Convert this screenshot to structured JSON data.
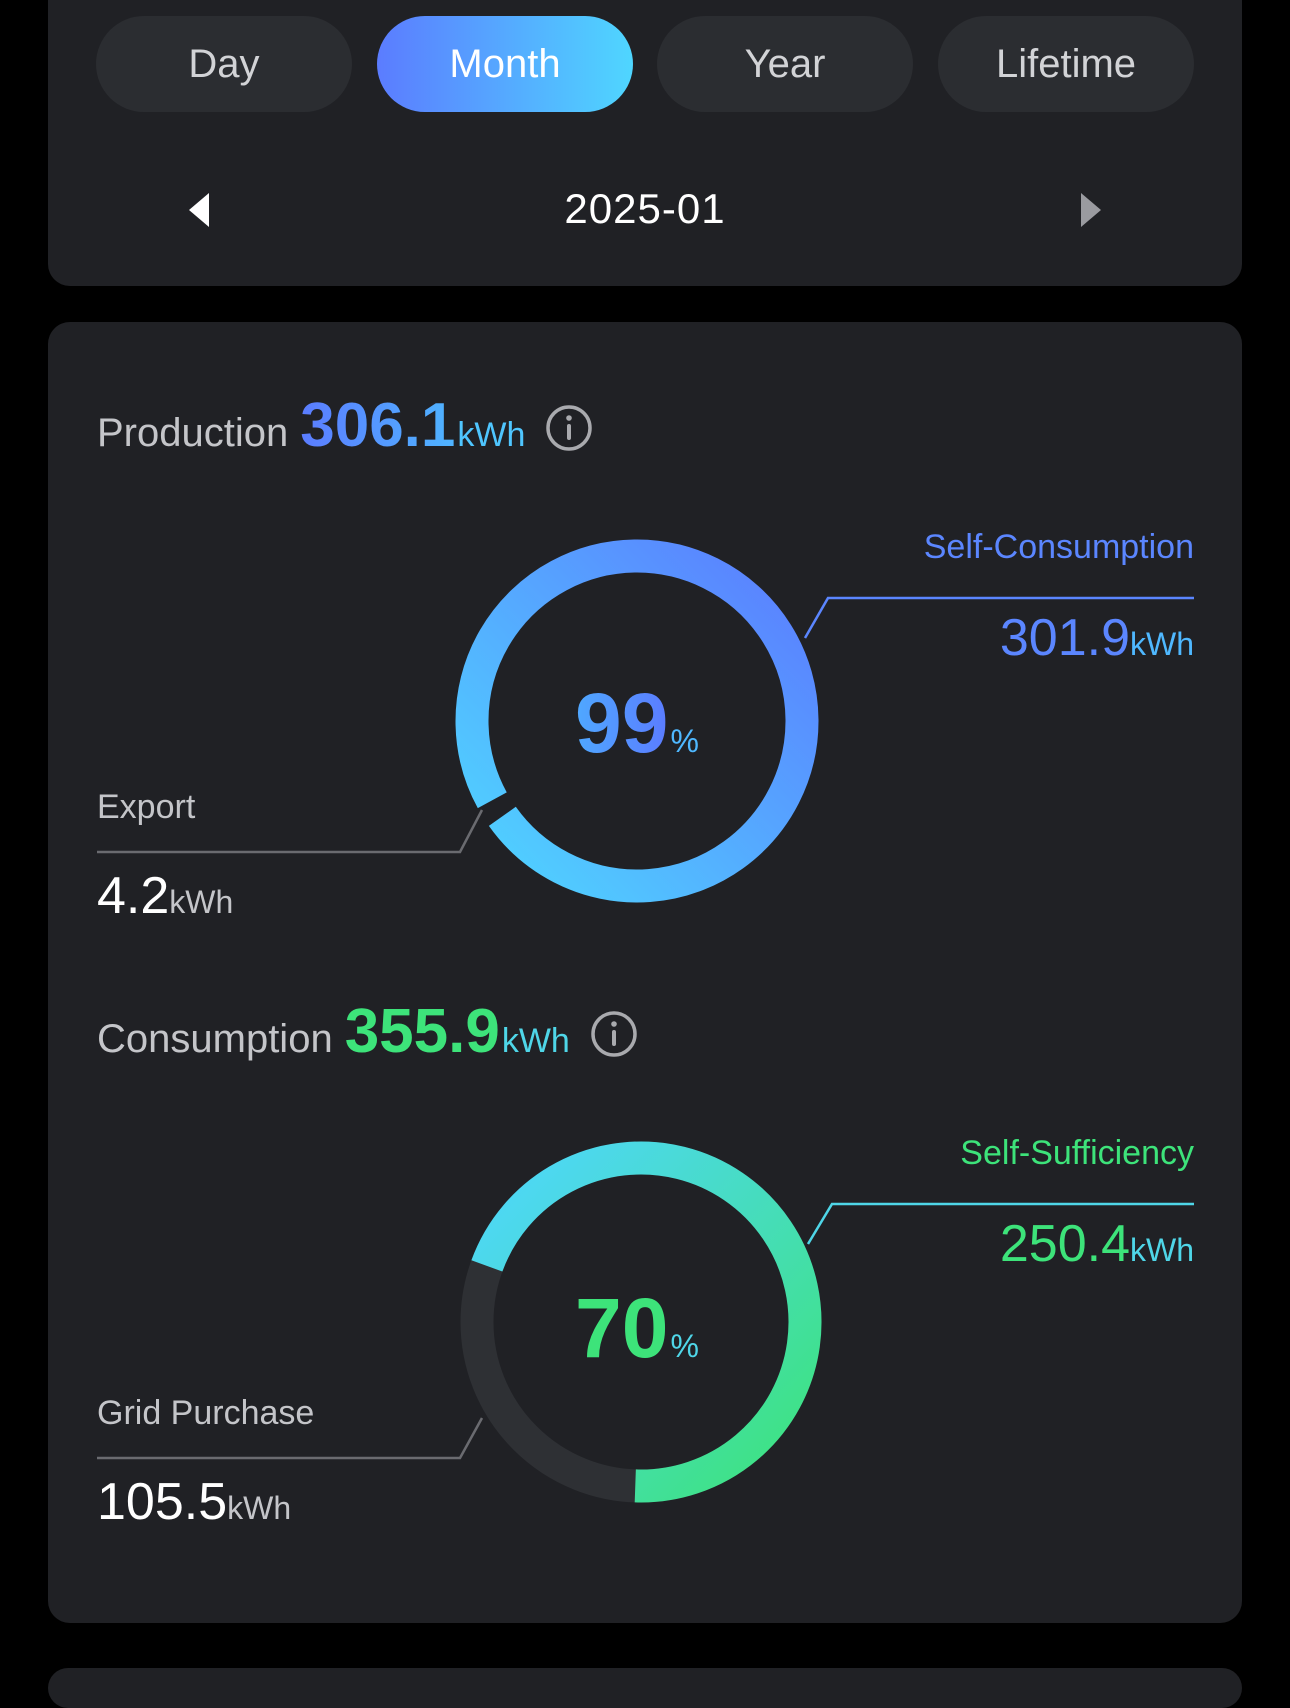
{
  "tabs": [
    {
      "label": "Day",
      "active": false
    },
    {
      "label": "Month",
      "active": true
    },
    {
      "label": "Year",
      "active": false
    },
    {
      "label": "Lifetime",
      "active": false
    }
  ],
  "date_nav": {
    "current": "2025-01",
    "prev_icon": "caret-left-icon",
    "next_icon": "caret-right-icon"
  },
  "production": {
    "label": "Production",
    "value": "306.1",
    "unit": "kWh",
    "info_icon": "info-circle-icon",
    "ring_percent": 99,
    "percent_label": "99",
    "percent_sign": "%",
    "self_consumption": {
      "label": "Self-Consumption",
      "value": "301.9",
      "unit": "kWh"
    },
    "export": {
      "label": "Export",
      "value": "4.2",
      "unit": "kWh"
    }
  },
  "consumption": {
    "label": "Consumption",
    "value": "355.9",
    "unit": "kWh",
    "info_icon": "info-circle-icon",
    "ring_percent": 70,
    "percent_label": "70",
    "percent_sign": "%",
    "self_sufficiency": {
      "label": "Self-Sufficiency",
      "value": "250.4",
      "unit": "kWh"
    },
    "grid_purchase": {
      "label": "Grid Purchase",
      "value": "105.5",
      "unit": "kWh"
    }
  },
  "colors": {
    "blue": "#5b7cff",
    "cyan": "#4fd6ff",
    "green": "#3de37a",
    "teal": "#4fd6e8",
    "card": "#202125",
    "track": "#2e3034"
  }
}
